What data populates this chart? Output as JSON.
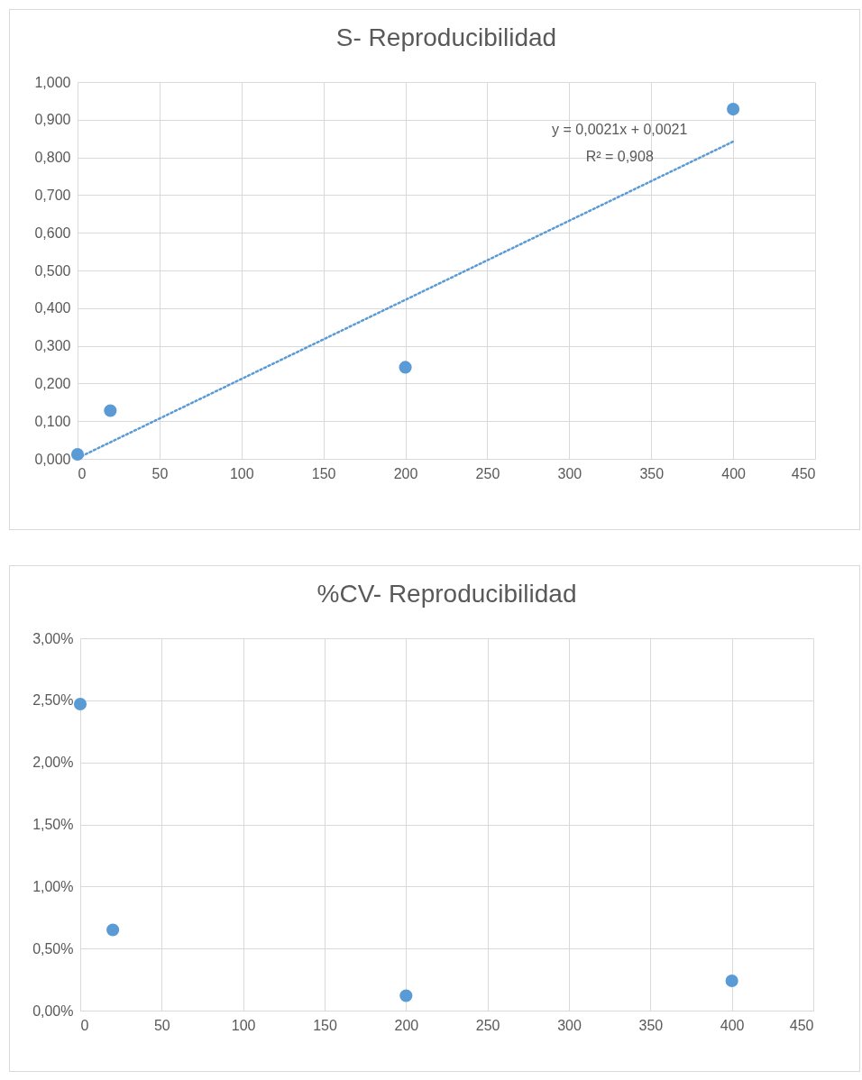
{
  "chart_data": [
    {
      "type": "scatter",
      "title": "S- Reproducibilidad",
      "grid": true,
      "legend": false,
      "xlim": [
        0,
        450
      ],
      "xticks": [
        0,
        50,
        100,
        150,
        200,
        250,
        300,
        350,
        400,
        450
      ],
      "ylim": [
        0,
        1
      ],
      "yticks": [
        {
          "value": 0,
          "label": "0,000"
        },
        {
          "value": 0.1,
          "label": "0,100"
        },
        {
          "value": 0.2,
          "label": "0,200"
        },
        {
          "value": 0.3,
          "label": "0,300"
        },
        {
          "value": 0.4,
          "label": "0,400"
        },
        {
          "value": 0.5,
          "label": "0,500"
        },
        {
          "value": 0.6,
          "label": "0,600"
        },
        {
          "value": 0.7,
          "label": "0,700"
        },
        {
          "value": 0.8,
          "label": "0,800"
        },
        {
          "value": 0.9,
          "label": "0,900"
        },
        {
          "value": 1,
          "label": "1,000"
        }
      ],
      "series": [
        {
          "color": "#5b9bd5",
          "marker": "circle",
          "x": [
            0,
            20,
            200,
            400
          ],
          "values": [
            0.012,
            0.128,
            0.243,
            0.928
          ]
        },
        {
          "type": "line",
          "color": "#5b9bd5",
          "marker": "none",
          "line_style": "dotted",
          "x": [
            0,
            400
          ],
          "values": [
            0.002,
            0.842
          ]
        }
      ],
      "annotations": [
        "y = 0,0021x + 0,0021",
        "R² = 0,908"
      ]
    },
    {
      "type": "scatter",
      "title": "%CV- Reproducibilidad",
      "grid": true,
      "legend": false,
      "xlim": [
        0,
        450
      ],
      "xticks": [
        0,
        50,
        100,
        150,
        200,
        250,
        300,
        350,
        400,
        450
      ],
      "ylim": [
        0,
        3
      ],
      "yticks": [
        {
          "value": 0,
          "label": "0,00%"
        },
        {
          "value": 0.5,
          "label": "0,50%"
        },
        {
          "value": 1,
          "label": "1,00%"
        },
        {
          "value": 1.5,
          "label": "1,50%"
        },
        {
          "value": 2,
          "label": "2,00%"
        },
        {
          "value": 2.5,
          "label": "2,50%"
        },
        {
          "value": 3,
          "label": "3,00%"
        }
      ],
      "series": [
        {
          "color": "#5b9bd5",
          "marker": "circle",
          "x": [
            0,
            20,
            200,
            400
          ],
          "values": [
            2.47,
            0.65,
            0.12,
            0.24
          ]
        }
      ]
    }
  ]
}
